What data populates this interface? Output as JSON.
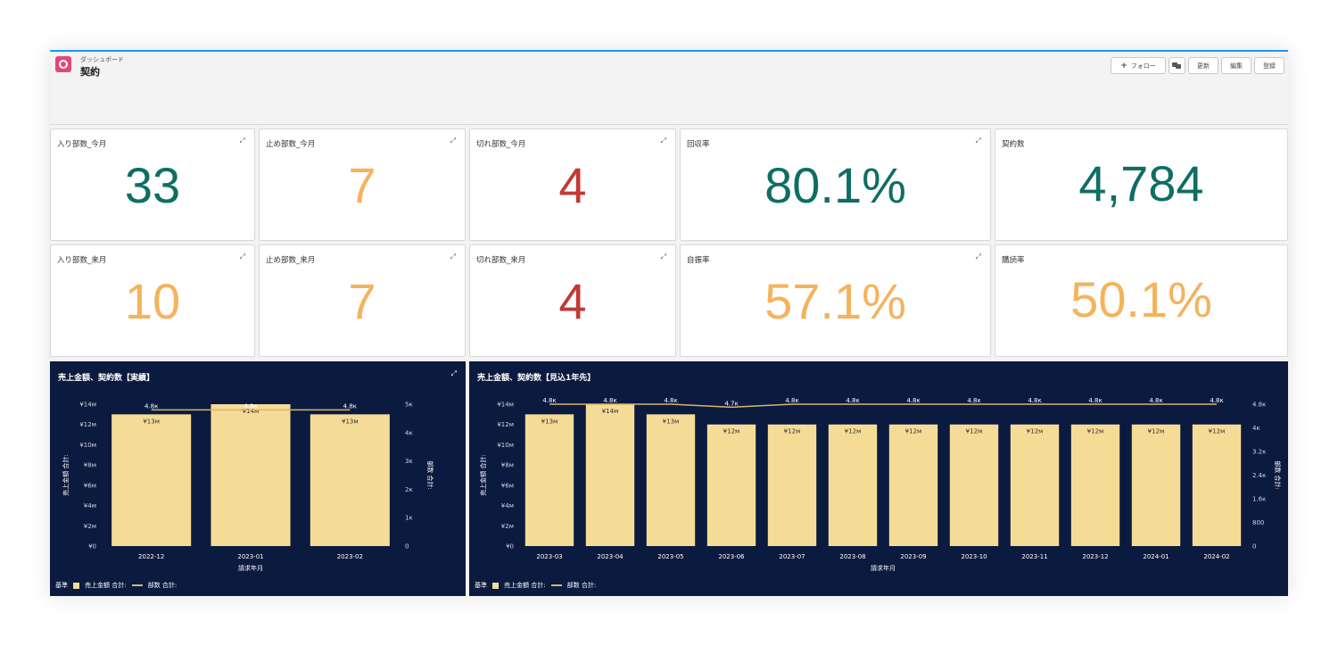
{
  "header": {
    "subtitle": "ダッシュボード",
    "title": "契約",
    "follow_label": "フォロー",
    "buttons": [
      "更新",
      "編集",
      "登録"
    ]
  },
  "metrics_row1": [
    {
      "label": "入り部数_今月",
      "value": "33",
      "color": "#0e6e64"
    },
    {
      "label": "止め部数_今月",
      "value": "7",
      "color": "#f4b35c"
    },
    {
      "label": "切れ部数_今月",
      "value": "4",
      "color": "#c23934"
    },
    {
      "label": "回収率",
      "value": "80.1%",
      "color": "#0e6e64"
    },
    {
      "label": "契約数",
      "value": "4,784",
      "color": "#0e6e64"
    }
  ],
  "metrics_row2": [
    {
      "label": "入り部数_来月",
      "value": "10",
      "color": "#f4b35c"
    },
    {
      "label": "止め部数_来月",
      "value": "7",
      "color": "#f4b35c"
    },
    {
      "label": "切れ部数_来月",
      "value": "4",
      "color": "#c23934"
    },
    {
      "label": "自振率",
      "value": "57.1%",
      "color": "#f4b35c"
    },
    {
      "label": "購読率",
      "value": "50.1%",
      "color": "#f4b35c"
    }
  ],
  "legend": {
    "prefix": "基準",
    "bar": "売上金額 合計:",
    "line": "部数 合計:"
  },
  "colors": {
    "bar": "#f5dc96",
    "line": "#d9b56a",
    "panel": "#0b1a3f"
  },
  "chart_data": [
    {
      "type": "bar",
      "title": "売上金額、契約数【実績】",
      "categories": [
        "2022-12",
        "2023-01",
        "2023-02"
      ],
      "series": [
        {
          "name": "売上金額 合計:",
          "values": [
            13,
            14,
            13
          ],
          "labels": [
            "¥13м",
            "¥14м",
            "¥13м"
          ]
        },
        {
          "name": "部数 合計:",
          "values": [
            4800,
            4800,
            4800
          ],
          "labels": [
            "4.8к",
            "4.8к",
            "4.8к"
          ]
        }
      ],
      "xlabel": "請求年月",
      "ylabel": "売上金額 合計:",
      "y2label": "部数 合計:",
      "ylim": [
        0,
        14
      ],
      "y2lim": [
        0,
        5000
      ],
      "yticks": [
        "¥0",
        "¥2м",
        "¥4м",
        "¥6м",
        "¥8м",
        "¥10м",
        "¥12м",
        "¥14м"
      ],
      "y2ticks": [
        "0",
        "1к",
        "2к",
        "3к",
        "4к",
        "5к"
      ],
      "legend": "bottom-left"
    },
    {
      "type": "bar",
      "title": "売上金額、契約数【見込1年先】",
      "categories": [
        "2023-03",
        "2023-04",
        "2023-05",
        "2023-06",
        "2023-07",
        "2023-08",
        "2023-09",
        "2023-10",
        "2023-11",
        "2023-12",
        "2024-01",
        "2024-02"
      ],
      "series": [
        {
          "name": "売上金額 合計:",
          "values": [
            13,
            14,
            13,
            12,
            12,
            12,
            12,
            12,
            12,
            12,
            12,
            12
          ],
          "labels": [
            "¥13м",
            "¥14м",
            "¥13м",
            "¥12м",
            "¥12м",
            "¥12м",
            "¥12м",
            "¥12м",
            "¥12м",
            "¥12м",
            "¥12м",
            "¥12м"
          ]
        },
        {
          "name": "部数 合計:",
          "values": [
            4800,
            4800,
            4800,
            4700,
            4800,
            4800,
            4800,
            4800,
            4800,
            4800,
            4800,
            4800
          ],
          "labels": [
            "4.8к",
            "4.8к",
            "4.8к",
            "4.7к",
            "4.8к",
            "4.8к",
            "4.8к",
            "4.8к",
            "4.8к",
            "4.8к",
            "4.8к",
            "4.8к"
          ]
        }
      ],
      "xlabel": "請求年月",
      "ylabel": "売上金額 合計:",
      "y2label": "部数 合計:",
      "ylim": [
        0,
        14
      ],
      "y2lim": [
        0,
        4800
      ],
      "yticks": [
        "¥0",
        "¥2м",
        "¥4м",
        "¥6м",
        "¥8м",
        "¥10м",
        "¥12м",
        "¥14м"
      ],
      "y2ticks": [
        "0",
        "800",
        "1.6к",
        "2.4к",
        "3.2к",
        "4к",
        "4.8к"
      ],
      "legend": "bottom-left"
    }
  ]
}
